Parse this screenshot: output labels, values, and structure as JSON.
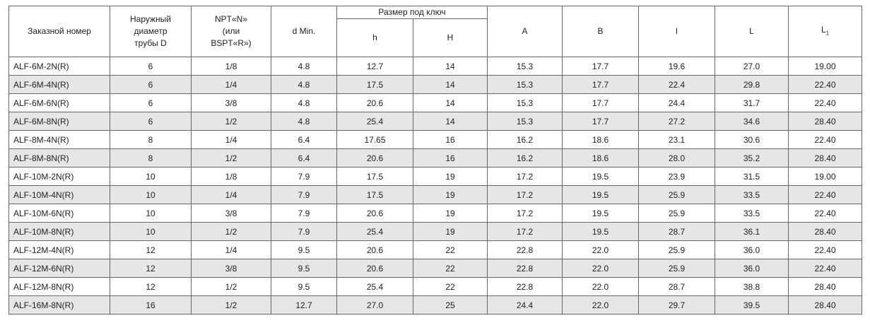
{
  "table": {
    "header": {
      "order_number": "Заказной номер",
      "outer_diameter": [
        "Наружный",
        "диаметр",
        "трубы D"
      ],
      "thread": [
        "NPT«N»",
        "(или",
        "BSPT«R»)"
      ],
      "d_min": "d Min.",
      "wrench": "Размер под ключ",
      "h": "h",
      "H": "H",
      "A": "A",
      "B": "B",
      "l": "l",
      "L": "L",
      "L1": {
        "main": "L",
        "sub": "1"
      }
    },
    "rows": [
      [
        "ALF-6M-2N(R)",
        "6",
        "1/8",
        "4.8",
        "12.7",
        "14",
        "15.3",
        "17.7",
        "19.6",
        "27.0",
        "19.00"
      ],
      [
        "ALF-6M-4N(R)",
        "6",
        "1/4",
        "4.8",
        "17.5",
        "14",
        "15.3",
        "17.7",
        "22.4",
        "29.8",
        "22.40"
      ],
      [
        "ALF-6M-6N(R)",
        "6",
        "3/8",
        "4.8",
        "20.6",
        "14",
        "15.3",
        "17.7",
        "24.4",
        "31.7",
        "22.40"
      ],
      [
        "ALF-6M-8N(R)",
        "6",
        "1/2",
        "4.8",
        "25.4",
        "14",
        "15.3",
        "17.7",
        "27.2",
        "34.6",
        "28.40"
      ],
      [
        "ALF-8M-4N(R)",
        "8",
        "1/4",
        "6.4",
        "17.65",
        "16",
        "16.2",
        "18.6",
        "23.1",
        "30.6",
        "22.40"
      ],
      [
        "ALF-8M-8N(R)",
        "8",
        "1/2",
        "6.4",
        "20.6",
        "16",
        "16.2",
        "18.6",
        "28.0",
        "35.2",
        "28.40"
      ],
      [
        "ALF-10M-2N(R)",
        "10",
        "1/8",
        "7.9",
        "17.5",
        "19",
        "17.2",
        "19.5",
        "23.9",
        "31.5",
        "19.00"
      ],
      [
        "ALF-10M-4N(R)",
        "10",
        "1/4",
        "7.9",
        "17.5",
        "19",
        "17.2",
        "19.5",
        "25.9",
        "33.5",
        "22.40"
      ],
      [
        "ALF-10M-6N(R)",
        "10",
        "3/8",
        "7.9",
        "20.6",
        "19",
        "17.2",
        "19.5",
        "25.9",
        "33.5",
        "22.40"
      ],
      [
        "ALF-10M-8N(R)",
        "10",
        "1/2",
        "7.9",
        "25.4",
        "19",
        "17.2",
        "19.5",
        "28.7",
        "36.1",
        "28.40"
      ],
      [
        "ALF-12M-4N(R)",
        "12",
        "1/4",
        "9.5",
        "20.6",
        "22",
        "22.8",
        "22.0",
        "25.9",
        "36.0",
        "22.40"
      ],
      [
        "ALF-12M-6N(R)",
        "12",
        "3/8",
        "9.5",
        "20.6",
        "22",
        "22.8",
        "22.0",
        "25.9",
        "36.0",
        "22.40"
      ],
      [
        "ALF-12M-8N(R)",
        "12",
        "1/2",
        "9.5",
        "25.4",
        "22",
        "22.8",
        "22.0",
        "28.7",
        "38.8",
        "28.40"
      ],
      [
        "ALF-16M-8N(R)",
        "16",
        "1/2",
        "12.7",
        "27.0",
        "25",
        "24.4",
        "22.0",
        "29.7",
        "39.5",
        "28.40"
      ]
    ]
  }
}
